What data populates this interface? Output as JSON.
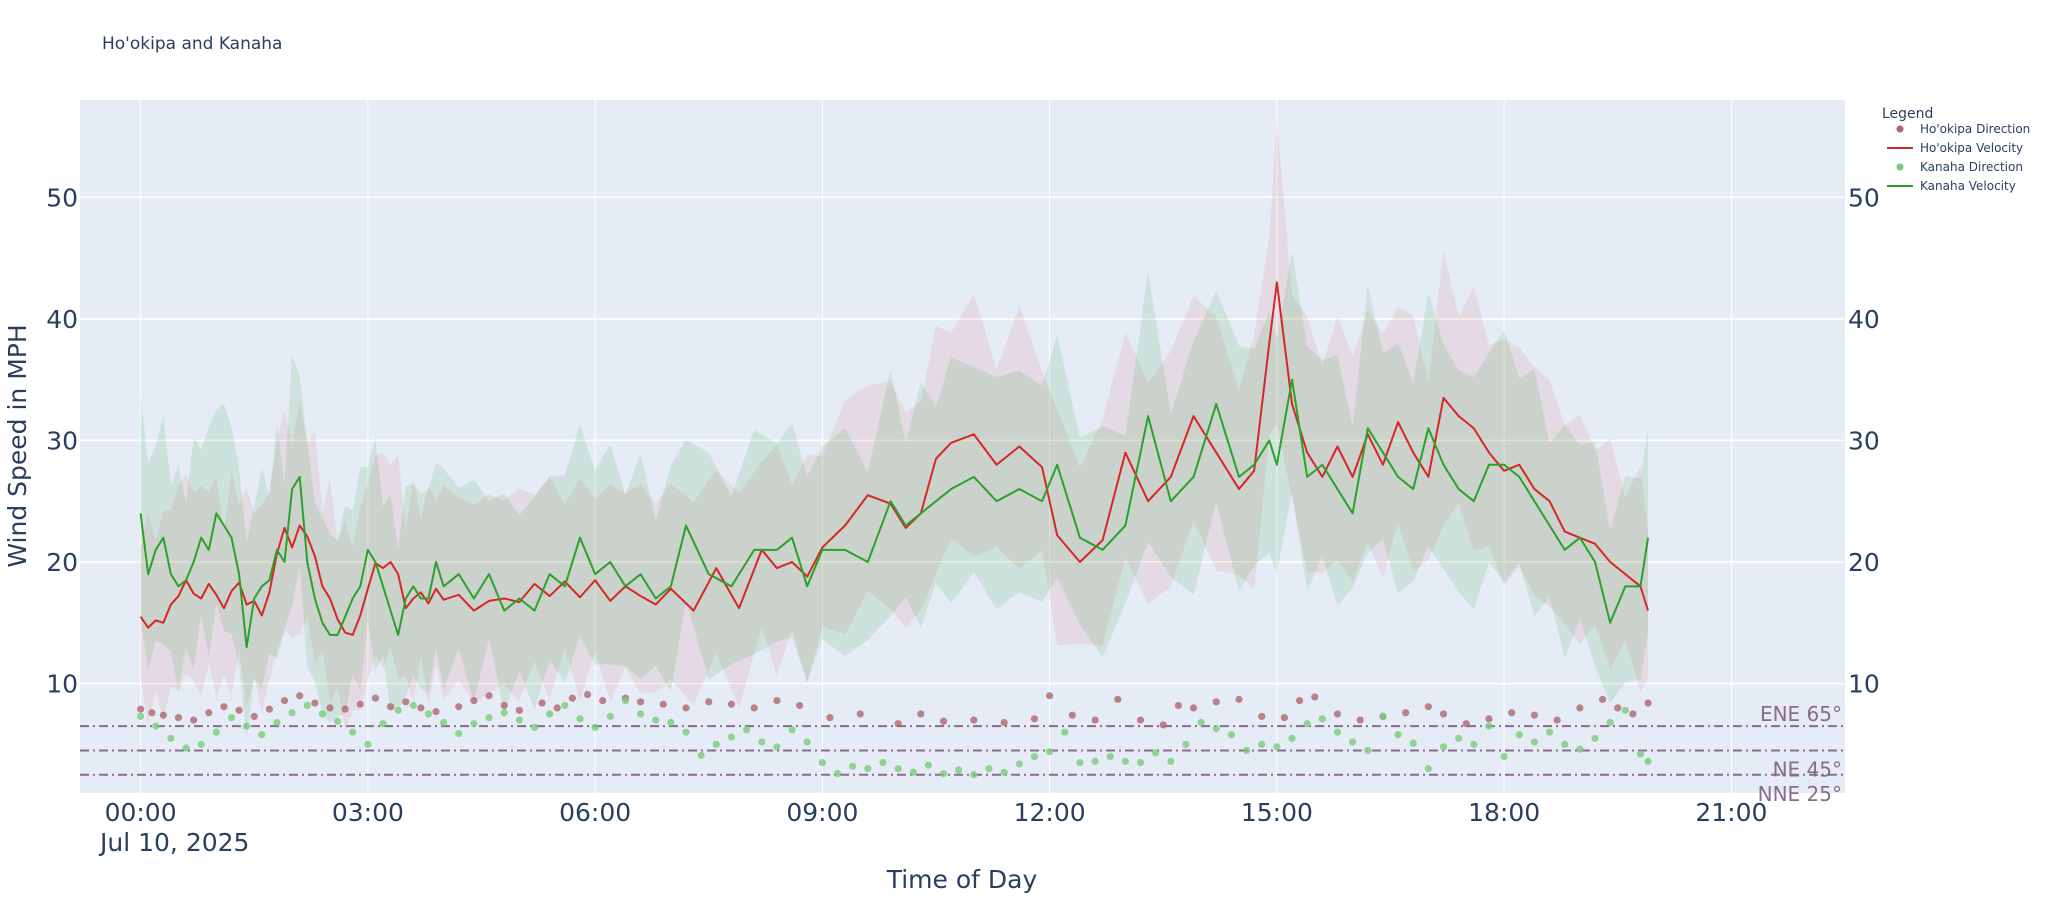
{
  "chart_data": {
    "type": "line",
    "title": "Ho'okipa and Kanaha",
    "xlabel": "Time of Day",
    "ylabel": "Wind Speed in MPH",
    "x_date_label": "Jul 10, 2025",
    "xlim_hours": [
      -0.8,
      22.5
    ],
    "ylim": [
      1,
      58
    ],
    "x_ticks": [
      {
        "h": 0,
        "label": "00:00"
      },
      {
        "h": 3,
        "label": "03:00"
      },
      {
        "h": 6,
        "label": "06:00"
      },
      {
        "h": 9,
        "label": "09:00"
      },
      {
        "h": 12,
        "label": "12:00"
      },
      {
        "h": 15,
        "label": "15:00"
      },
      {
        "h": 18,
        "label": "18:00"
      },
      {
        "h": 21,
        "label": "21:00"
      }
    ],
    "y_ticks": [
      {
        "v": 10,
        "label": "10"
      },
      {
        "v": 20,
        "label": "20"
      },
      {
        "v": 30,
        "label": "30"
      },
      {
        "v": 40,
        "label": "40"
      },
      {
        "v": 50,
        "label": "50"
      }
    ],
    "grid": true,
    "legend_title": "Legend",
    "legend_position": "top-right",
    "series": [
      {
        "name": "Ho'okipa Direction",
        "kind": "markers",
        "color": "#b0666e",
        "points": [
          [
            0,
            7.9
          ],
          [
            0.15,
            7.6
          ],
          [
            0.3,
            7.4
          ],
          [
            0.5,
            7.2
          ],
          [
            0.7,
            7.0
          ],
          [
            0.9,
            7.6
          ],
          [
            1.1,
            8.1
          ],
          [
            1.3,
            7.8
          ],
          [
            1.5,
            7.3
          ],
          [
            1.7,
            7.9
          ],
          [
            1.9,
            8.6
          ],
          [
            2.1,
            9.0
          ],
          [
            2.3,
            8.4
          ],
          [
            2.5,
            8.0
          ],
          [
            2.7,
            7.9
          ],
          [
            2.9,
            8.3
          ],
          [
            3.1,
            8.8
          ],
          [
            3.3,
            8.1
          ],
          [
            3.5,
            8.5
          ],
          [
            3.7,
            8.0
          ],
          [
            3.9,
            7.7
          ],
          [
            4.2,
            8.1
          ],
          [
            4.4,
            8.6
          ],
          [
            4.6,
            9.0
          ],
          [
            4.8,
            8.2
          ],
          [
            5.0,
            7.8
          ],
          [
            5.3,
            8.4
          ],
          [
            5.5,
            8.0
          ],
          [
            5.7,
            8.8
          ],
          [
            5.9,
            9.1
          ],
          [
            6.1,
            8.6
          ],
          [
            6.4,
            8.8
          ],
          [
            6.6,
            8.5
          ],
          [
            6.9,
            8.3
          ],
          [
            7.2,
            8.0
          ],
          [
            7.5,
            8.5
          ],
          [
            7.8,
            8.3
          ],
          [
            8.1,
            8.0
          ],
          [
            8.4,
            8.6
          ],
          [
            8.7,
            8.2
          ],
          [
            9.1,
            7.2
          ],
          [
            9.5,
            7.5
          ],
          [
            10.0,
            6.7
          ],
          [
            10.3,
            7.5
          ],
          [
            10.6,
            6.9
          ],
          [
            11.0,
            7.0
          ],
          [
            11.4,
            6.8
          ],
          [
            11.8,
            7.1
          ],
          [
            12.0,
            9.0
          ],
          [
            12.3,
            7.4
          ],
          [
            12.6,
            7.0
          ],
          [
            12.9,
            8.7
          ],
          [
            13.2,
            7.0
          ],
          [
            13.5,
            6.6
          ],
          [
            13.7,
            8.2
          ],
          [
            13.9,
            8.0
          ],
          [
            14.2,
            8.5
          ],
          [
            14.5,
            8.7
          ],
          [
            14.8,
            7.3
          ],
          [
            15.1,
            7.2
          ],
          [
            15.3,
            8.6
          ],
          [
            15.5,
            8.9
          ],
          [
            15.8,
            7.5
          ],
          [
            16.1,
            7.0
          ],
          [
            16.4,
            7.3
          ],
          [
            16.7,
            7.6
          ],
          [
            17.0,
            8.1
          ],
          [
            17.2,
            7.5
          ],
          [
            17.5,
            6.7
          ],
          [
            17.8,
            7.1
          ],
          [
            18.1,
            7.6
          ],
          [
            18.4,
            7.4
          ],
          [
            18.7,
            7.0
          ],
          [
            19.0,
            8.0
          ],
          [
            19.3,
            8.7
          ],
          [
            19.5,
            8.0
          ],
          [
            19.7,
            7.5
          ],
          [
            19.9,
            8.4
          ]
        ]
      },
      {
        "name": "Ho'okipa Velocity",
        "kind": "line",
        "color": "#d62728",
        "x": [
          0,
          0.1,
          0.2,
          0.3,
          0.4,
          0.5,
          0.6,
          0.7,
          0.8,
          0.9,
          1.0,
          1.1,
          1.2,
          1.3,
          1.4,
          1.5,
          1.6,
          1.7,
          1.8,
          1.9,
          2.0,
          2.1,
          2.2,
          2.3,
          2.4,
          2.5,
          2.6,
          2.7,
          2.8,
          2.9,
          3.0,
          3.1,
          3.2,
          3.3,
          3.4,
          3.5,
          3.6,
          3.7,
          3.8,
          3.9,
          4.0,
          4.2,
          4.4,
          4.6,
          4.8,
          5.0,
          5.2,
          5.4,
          5.6,
          5.8,
          6.0,
          6.2,
          6.4,
          6.6,
          6.8,
          7.0,
          7.3,
          7.6,
          7.9,
          8.2,
          8.4,
          8.6,
          8.8,
          9.0,
          9.3,
          9.6,
          9.9,
          10.1,
          10.3,
          10.5,
          10.7,
          11.0,
          11.3,
          11.6,
          11.9,
          12.1,
          12.4,
          12.7,
          13.0,
          13.3,
          13.6,
          13.9,
          14.2,
          14.5,
          14.7,
          14.9,
          15.0,
          15.2,
          15.4,
          15.6,
          15.8,
          16.0,
          16.2,
          16.4,
          16.6,
          16.8,
          17.0,
          17.2,
          17.4,
          17.6,
          17.8,
          18.0,
          18.2,
          18.4,
          18.6,
          18.8,
          19.0,
          19.2,
          19.4,
          19.6,
          19.8,
          19.9
        ],
        "y": [
          15.5,
          14.6,
          15.2,
          15.0,
          16.5,
          17.2,
          18.5,
          17.4,
          17.0,
          18.2,
          17.3,
          16.2,
          17.6,
          18.3,
          16.5,
          16.8,
          15.6,
          17.5,
          20.7,
          22.8,
          21.2,
          23.0,
          22.1,
          20.5,
          18.0,
          17.0,
          15.3,
          14.2,
          14.0,
          15.6,
          17.8,
          19.9,
          19.5,
          20.0,
          19.0,
          16.2,
          17.0,
          17.5,
          16.6,
          17.8,
          16.9,
          17.3,
          16.0,
          16.8,
          17.0,
          16.7,
          18.2,
          17.2,
          18.4,
          17.1,
          18.5,
          16.8,
          18.0,
          17.2,
          16.5,
          17.8,
          16.0,
          19.5,
          16.2,
          21.0,
          19.5,
          20.0,
          18.8,
          21.2,
          23.0,
          25.5,
          24.8,
          22.8,
          24.0,
          28.5,
          29.8,
          30.5,
          28.0,
          29.5,
          27.8,
          22.2,
          20.0,
          21.8,
          29.0,
          25.0,
          27.0,
          32.0,
          29.0,
          26.0,
          27.5,
          38.0,
          43.0,
          33.0,
          29.0,
          27.0,
          29.5,
          27.0,
          30.5,
          28.0,
          31.5,
          29.0,
          27.0,
          33.5,
          32.0,
          31.0,
          29.0,
          27.5,
          28.0,
          26.0,
          25.0,
          22.5,
          22.0,
          21.5,
          20.0,
          19.0,
          18.0,
          16.0
        ]
      },
      {
        "name": "Kanaha Direction",
        "kind": "markers",
        "color": "#7acc7a",
        "points": [
          [
            0,
            7.3
          ],
          [
            0.2,
            6.5
          ],
          [
            0.4,
            5.5
          ],
          [
            0.6,
            4.7
          ],
          [
            0.8,
            5.0
          ],
          [
            1.0,
            6.0
          ],
          [
            1.2,
            7.2
          ],
          [
            1.4,
            6.5
          ],
          [
            1.6,
            5.8
          ],
          [
            1.8,
            6.8
          ],
          [
            2.0,
            7.6
          ],
          [
            2.2,
            8.2
          ],
          [
            2.4,
            7.5
          ],
          [
            2.6,
            6.9
          ],
          [
            2.8,
            6.0
          ],
          [
            3.0,
            5.0
          ],
          [
            3.2,
            6.7
          ],
          [
            3.4,
            7.8
          ],
          [
            3.6,
            8.2
          ],
          [
            3.8,
            7.5
          ],
          [
            4.0,
            6.8
          ],
          [
            4.2,
            5.9
          ],
          [
            4.4,
            6.7
          ],
          [
            4.6,
            7.2
          ],
          [
            4.8,
            7.6
          ],
          [
            5.0,
            7.0
          ],
          [
            5.2,
            6.4
          ],
          [
            5.4,
            7.5
          ],
          [
            5.6,
            8.2
          ],
          [
            5.8,
            7.1
          ],
          [
            6.0,
            6.4
          ],
          [
            6.2,
            7.3
          ],
          [
            6.4,
            8.6
          ],
          [
            6.6,
            7.5
          ],
          [
            6.8,
            7.0
          ],
          [
            7.0,
            6.8
          ],
          [
            7.2,
            6.0
          ],
          [
            7.4,
            4.1
          ],
          [
            7.6,
            5.0
          ],
          [
            7.8,
            5.6
          ],
          [
            8.0,
            6.2
          ],
          [
            8.2,
            5.2
          ],
          [
            8.4,
            4.8
          ],
          [
            8.6,
            6.2
          ],
          [
            8.8,
            5.2
          ],
          [
            9.0,
            3.5
          ],
          [
            9.2,
            2.6
          ],
          [
            9.4,
            3.2
          ],
          [
            9.6,
            3.0
          ],
          [
            9.8,
            3.5
          ],
          [
            10.0,
            3.0
          ],
          [
            10.2,
            2.7
          ],
          [
            10.4,
            3.3
          ],
          [
            10.6,
            2.6
          ],
          [
            10.8,
            2.9
          ],
          [
            11.0,
            2.5
          ],
          [
            11.2,
            3.0
          ],
          [
            11.4,
            2.7
          ],
          [
            11.6,
            3.4
          ],
          [
            11.8,
            4.0
          ],
          [
            12.0,
            4.4
          ],
          [
            12.2,
            6.0
          ],
          [
            12.4,
            3.5
          ],
          [
            12.6,
            3.6
          ],
          [
            12.8,
            4.0
          ],
          [
            13.0,
            3.6
          ],
          [
            13.2,
            3.5
          ],
          [
            13.4,
            4.3
          ],
          [
            13.6,
            3.6
          ],
          [
            13.8,
            5.0
          ],
          [
            14.0,
            6.8
          ],
          [
            14.2,
            6.3
          ],
          [
            14.4,
            5.8
          ],
          [
            14.6,
            4.5
          ],
          [
            14.8,
            5.0
          ],
          [
            15.0,
            4.8
          ],
          [
            15.2,
            5.5
          ],
          [
            15.4,
            6.7
          ],
          [
            15.6,
            7.1
          ],
          [
            15.8,
            6.0
          ],
          [
            16.0,
            5.2
          ],
          [
            16.2,
            4.5
          ],
          [
            16.4,
            7.3
          ],
          [
            16.6,
            5.8
          ],
          [
            16.8,
            5.1
          ],
          [
            17.0,
            3.0
          ],
          [
            17.2,
            4.8
          ],
          [
            17.4,
            5.5
          ],
          [
            17.6,
            5.0
          ],
          [
            17.8,
            6.5
          ],
          [
            18.0,
            4.0
          ],
          [
            18.2,
            5.8
          ],
          [
            18.4,
            5.2
          ],
          [
            18.6,
            6.0
          ],
          [
            18.8,
            5.0
          ],
          [
            19.0,
            4.6
          ],
          [
            19.2,
            5.5
          ],
          [
            19.4,
            6.8
          ],
          [
            19.6,
            7.8
          ],
          [
            19.8,
            4.2
          ],
          [
            19.9,
            3.6
          ]
        ]
      },
      {
        "name": "Kanaha Velocity",
        "kind": "line",
        "color": "#2ca02c",
        "x": [
          0,
          0.1,
          0.2,
          0.3,
          0.4,
          0.5,
          0.6,
          0.7,
          0.8,
          0.9,
          1.0,
          1.1,
          1.2,
          1.3,
          1.4,
          1.5,
          1.6,
          1.7,
          1.8,
          1.9,
          2.0,
          2.1,
          2.2,
          2.3,
          2.4,
          2.5,
          2.6,
          2.7,
          2.8,
          2.9,
          3.0,
          3.1,
          3.2,
          3.3,
          3.4,
          3.5,
          3.6,
          3.7,
          3.8,
          3.9,
          4.0,
          4.2,
          4.4,
          4.6,
          4.8,
          5.0,
          5.2,
          5.4,
          5.6,
          5.8,
          6.0,
          6.2,
          6.4,
          6.6,
          6.8,
          7.0,
          7.2,
          7.5,
          7.8,
          8.1,
          8.4,
          8.6,
          8.8,
          9.0,
          9.3,
          9.6,
          9.9,
          10.1,
          10.3,
          10.5,
          10.7,
          11.0,
          11.3,
          11.6,
          11.9,
          12.1,
          12.4,
          12.7,
          13.0,
          13.3,
          13.6,
          13.9,
          14.2,
          14.5,
          14.7,
          14.9,
          15.0,
          15.2,
          15.4,
          15.6,
          15.8,
          16.0,
          16.2,
          16.4,
          16.6,
          16.8,
          17.0,
          17.2,
          17.4,
          17.6,
          17.8,
          18.0,
          18.2,
          18.4,
          18.6,
          18.8,
          19.0,
          19.2,
          19.4,
          19.6,
          19.8,
          19.9
        ],
        "y": [
          24.0,
          19.0,
          21.0,
          22.0,
          19.0,
          18.0,
          18.5,
          20.0,
          22.0,
          21.0,
          24.0,
          23.0,
          22.0,
          19.0,
          13.0,
          17.0,
          18.0,
          18.5,
          21.0,
          20.0,
          26.0,
          27.0,
          20.0,
          17.0,
          15.0,
          14.0,
          14.0,
          15.5,
          17.0,
          18.0,
          21.0,
          20.0,
          18.0,
          16.0,
          14.0,
          17.0,
          18.0,
          17.0,
          17.0,
          20.0,
          18.0,
          19.0,
          17.0,
          19.0,
          16.0,
          17.0,
          16.0,
          19.0,
          18.0,
          22.0,
          19.0,
          20.0,
          18.0,
          19.0,
          17.0,
          18.0,
          23.0,
          19.0,
          18.0,
          21.0,
          21.0,
          22.0,
          18.0,
          21.0,
          21.0,
          20.0,
          25.0,
          23.0,
          24.0,
          25.0,
          26.0,
          27.0,
          25.0,
          26.0,
          25.0,
          28.0,
          22.0,
          21.0,
          23.0,
          32.0,
          25.0,
          27.0,
          33.0,
          27.0,
          28.0,
          30.0,
          28.0,
          35.0,
          27.0,
          28.0,
          26.0,
          24.0,
          31.0,
          29.0,
          27.0,
          26.0,
          31.0,
          28.0,
          26.0,
          25.0,
          28.0,
          28.0,
          27.0,
          25.0,
          23.0,
          21.0,
          22.0,
          20.0,
          15.0,
          18.0,
          18.0,
          22.0
        ]
      }
    ],
    "reference_lines": [
      {
        "label": "ENE 65°",
        "y": 6.5
      },
      {
        "label": "NE 45°",
        "y": 4.5
      },
      {
        "label": "NNE 25°",
        "y": 2.5
      }
    ],
    "colors": {
      "plot_bg": "#e5ecf6",
      "grid": "#ffffff",
      "text": "#2a3f5f",
      "hookipa_band": "rgba(214,39,40,0.09)",
      "kanaha_band": "rgba(44,160,44,0.13)",
      "ref_line": "#8a6a8e"
    }
  }
}
